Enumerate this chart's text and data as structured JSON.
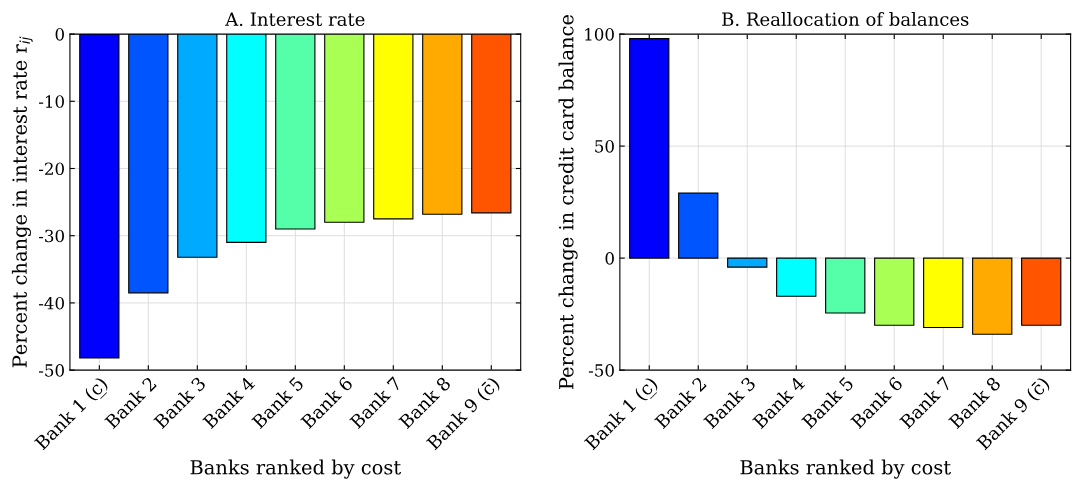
{
  "chart_data": [
    {
      "type": "bar",
      "title": "A. Interest rate",
      "xlabel": "Banks ranked by cost",
      "ylabel": "Percent change in interest rate r$_{ij}$",
      "categories": [
        "Bank 1 (c̲)",
        "Bank 2",
        "Bank 3",
        "Bank 4",
        "Bank 5",
        "Bank 6",
        "Bank 7",
        "Bank 8",
        "Bank 9 (c̄)"
      ],
      "values": [
        -48.2,
        -38.5,
        -33.2,
        -31,
        -29,
        -28,
        -27.5,
        -26.8,
        -26.6
      ],
      "colors": [
        "#0000ff",
        "#0055ff",
        "#00aaff",
        "#00ffff",
        "#55ffaa",
        "#aaff55",
        "#ffff00",
        "#ffaa00",
        "#ff5500"
      ],
      "ylim": [
        -50,
        0
      ],
      "yticks": [
        -50,
        -40,
        -30,
        -20,
        -10,
        0
      ],
      "grid": true
    },
    {
      "type": "bar",
      "title": "B. Reallocation of balances",
      "xlabel": "Banks ranked by cost",
      "ylabel": "Percent change in credit card balance",
      "categories": [
        "Bank 1 (c̲)",
        "Bank 2",
        "Bank 3",
        "Bank 4",
        "Bank 5",
        "Bank 6",
        "Bank 7",
        "Bank 8",
        "Bank 9 (c̄)"
      ],
      "values": [
        98,
        29,
        -4,
        -17,
        -24.5,
        -30,
        -31,
        -34,
        -30
      ],
      "colors": [
        "#0000ff",
        "#0055ff",
        "#00aaff",
        "#00ffff",
        "#55ffaa",
        "#aaff55",
        "#ffff00",
        "#ffaa00",
        "#ff5500"
      ],
      "ylim": [
        -50,
        100
      ],
      "yticks": [
        -50,
        0,
        50,
        100
      ],
      "grid": true
    }
  ]
}
